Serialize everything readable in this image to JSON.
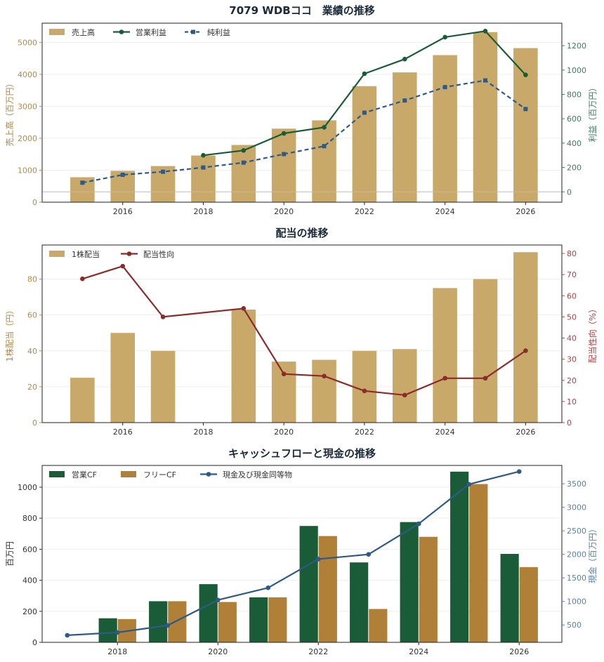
{
  "colors": {
    "gold": "#C8A96A",
    "green": "#1A5C38",
    "blue": "#2D5A86",
    "red": "#8B2B2B",
    "bronze": "#B08038",
    "text_dark": "#1B2A3A",
    "gold_axis": "#B08A4A",
    "green_axis": "#3F7A5E",
    "red_axis": "#B04040",
    "blue_axis": "#5A7FA6"
  },
  "chart_data": [
    {
      "type": "bar",
      "title": "7079 WDBココ　業績の推移",
      "ylabel": "売上高（百万円）",
      "ylabel_right": "利益（百万円）",
      "x": [
        2015,
        2016,
        2017,
        2018,
        2019,
        2020,
        2021,
        2022,
        2023,
        2024,
        2025,
        2026
      ],
      "xticks": [
        "2016",
        "2018",
        "2020",
        "2022",
        "2024",
        "2026"
      ],
      "xlim": [
        2014.0,
        2026.9
      ],
      "ylim": [
        0,
        5600
      ],
      "ylim_right": [
        -85,
        1385
      ],
      "yticks": [
        "0",
        "1000",
        "2000",
        "3000",
        "4000",
        "5000"
      ],
      "yticks_right": [
        "0",
        "200",
        "400",
        "600",
        "800",
        "1000",
        "1200"
      ],
      "legend_position": "top-left",
      "series": [
        {
          "name": "売上高",
          "kind": "bar",
          "axis": "left",
          "values": [
            780,
            980,
            1130,
            1460,
            1790,
            2300,
            2560,
            3630,
            4060,
            4600,
            5320,
            4820
          ]
        },
        {
          "name": "営業利益",
          "kind": "line",
          "axis": "right",
          "values": [
            null,
            null,
            null,
            300,
            340,
            480,
            530,
            970,
            1090,
            1270,
            1320,
            960
          ]
        },
        {
          "name": "純利益",
          "kind": "line-dashed",
          "axis": "right",
          "values": [
            75,
            140,
            165,
            200,
            240,
            310,
            375,
            650,
            750,
            860,
            915,
            680
          ]
        }
      ]
    },
    {
      "type": "bar",
      "title": "配当の推移",
      "ylabel": "1株配当（円）",
      "ylabel_right": "配当性向（%）",
      "x": [
        2015,
        2016,
        2017,
        2018,
        2019,
        2020,
        2021,
        2022,
        2023,
        2024,
        2025,
        2026
      ],
      "xticks": [
        "2016",
        "2018",
        "2020",
        "2022",
        "2024",
        "2026"
      ],
      "xlim": [
        2014.0,
        2026.9
      ],
      "ylim": [
        0,
        99
      ],
      "ylim_right": [
        0,
        84
      ],
      "yticks": [
        "0",
        "20",
        "40",
        "60",
        "80"
      ],
      "yticks_right": [
        "0",
        "10",
        "20",
        "30",
        "40",
        "50",
        "60",
        "70",
        "80"
      ],
      "legend_position": "top-left",
      "series": [
        {
          "name": "1株配当",
          "kind": "bar",
          "axis": "left",
          "values": [
            25,
            50,
            40,
            null,
            63,
            34,
            35,
            40,
            41,
            75,
            80,
            95
          ]
        },
        {
          "name": "配当性向",
          "kind": "line",
          "axis": "right",
          "values": [
            68,
            74,
            50,
            null,
            54,
            23,
            22,
            15,
            13,
            21,
            21,
            34
          ]
        }
      ]
    },
    {
      "type": "bar",
      "title": "キャッシュフローと現金の推移",
      "ylabel": "百万円",
      "ylabel_right": "現金（百万円）",
      "x": [
        2017,
        2018,
        2019,
        2020,
        2021,
        2022,
        2023,
        2024,
        2025,
        2026
      ],
      "xticks": [
        "2018",
        "2020",
        "2022",
        "2024",
        "2026"
      ],
      "xlim": [
        2016.5,
        2026.85
      ],
      "ylim": [
        0,
        1140
      ],
      "ylim_right": [
        130,
        3890
      ],
      "yticks": [
        "0",
        "200",
        "400",
        "600",
        "800",
        "1000"
      ],
      "yticks_right": [
        "500",
        "1000",
        "1500",
        "2000",
        "2500",
        "3000",
        "3500"
      ],
      "legend_position": "top-left",
      "series": [
        {
          "name": "営業CF",
          "kind": "bar",
          "axis": "left",
          "values": [
            null,
            155,
            265,
            375,
            290,
            750,
            515,
            775,
            1100,
            570
          ]
        },
        {
          "name": "フリーCF",
          "kind": "bar",
          "axis": "left",
          "values": [
            null,
            150,
            265,
            260,
            290,
            685,
            215,
            680,
            1020,
            485
          ]
        },
        {
          "name": "現金及び現金同等物",
          "kind": "line",
          "axis": "right",
          "values": [
            280,
            340,
            490,
            1030,
            1290,
            1900,
            2000,
            2650,
            3490,
            3760
          ]
        }
      ]
    }
  ]
}
